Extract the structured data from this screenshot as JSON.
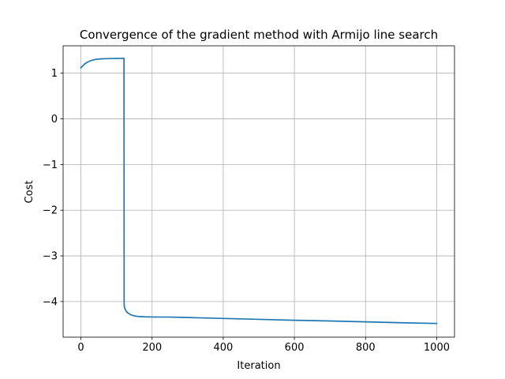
{
  "chart_data": {
    "type": "line",
    "title": "Convergence of the gradient method with Armijo line search",
    "xlabel": "Iteration",
    "ylabel": "Cost",
    "xlim": [
      -50,
      1050
    ],
    "ylim": [
      -4.78,
      1.6
    ],
    "xticks": [
      0,
      200,
      400,
      600,
      800,
      1000
    ],
    "yticks": [
      1,
      0,
      -1,
      -2,
      -3,
      -4
    ],
    "xtick_labels": [
      "0",
      "200",
      "400",
      "600",
      "800",
      "1000"
    ],
    "ytick_labels": [
      "1",
      "0",
      "−1",
      "−2",
      "−3",
      "−4"
    ],
    "grid": true,
    "legend": "none",
    "line_color": "#1f77b4",
    "series": [
      {
        "x": [
          0,
          5,
          10,
          20,
          30,
          40,
          50,
          60,
          70,
          80,
          90,
          100,
          110,
          121,
          121.5,
          122,
          125,
          130,
          140,
          150,
          160,
          170,
          180,
          200,
          250,
          300,
          400,
          500,
          600,
          700,
          800,
          900,
          1000
        ],
        "y": [
          1.12,
          1.16,
          1.2,
          1.25,
          1.28,
          1.3,
          1.31,
          1.315,
          1.318,
          1.32,
          1.322,
          1.323,
          1.324,
          1.325,
          -4.05,
          -4.12,
          -4.18,
          -4.24,
          -4.29,
          -4.315,
          -4.325,
          -4.33,
          -4.335,
          -4.338,
          -4.34,
          -4.35,
          -4.37,
          -4.39,
          -4.41,
          -4.425,
          -4.445,
          -4.465,
          -4.48
        ]
      }
    ]
  }
}
